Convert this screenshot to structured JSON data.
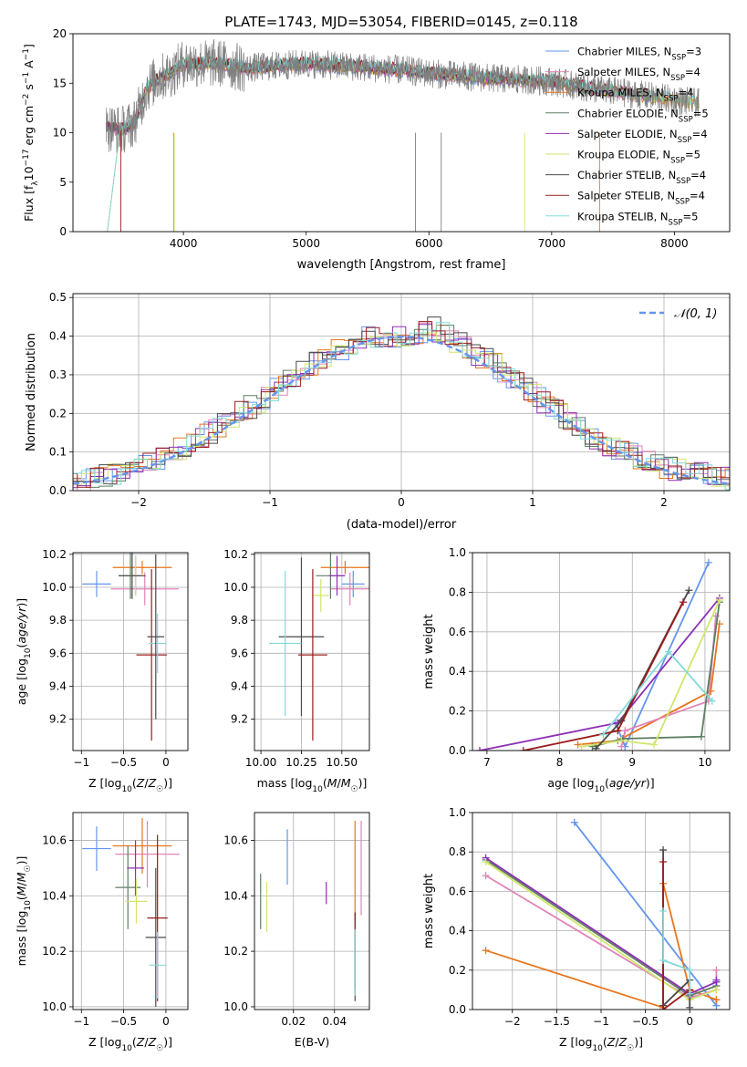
{
  "figure": {
    "title": "PLATE=1743, MJD=53054, FIBERID=0145, z=0.118"
  },
  "colors": {
    "cornflowerblue": "#6495ed",
    "orange": "#e8761e",
    "pink": "#e283b6",
    "darkgreen": "#5e7f63",
    "purple": "#8e2fb5",
    "yellowgreen": "#cfe66a",
    "charcoal": "#4a4a4a",
    "darkred": "#9b1c1c",
    "cyan": "#82d9d9",
    "gray": "#808080"
  },
  "chart_data": [
    {
      "id": "spectrum",
      "type": "line",
      "xlabel": "wavelength [Angstrom, rest frame]",
      "ylabel": "Flux [f_λ10^-17 erg cm^-2 s^-1 A^-1]",
      "xlim": [
        3100,
        8450
      ],
      "ylim": [
        0,
        20
      ],
      "xticks": [
        4000,
        5000,
        6000,
        7000,
        8000
      ],
      "yticks": [
        0,
        5,
        10,
        15,
        20
      ],
      "grid": false,
      "legend_position": "top-right",
      "data_gray_rough": {
        "x": [
          3400,
          3500,
          3600,
          3700,
          3800,
          3900,
          4000,
          4100,
          4300,
          4500,
          4800,
          5000,
          5200,
          5500,
          5800,
          6000,
          6200,
          6500,
          6800,
          7000,
          7300,
          7600,
          7900,
          8200
        ],
        "y": [
          10.5,
          10.3,
          11.0,
          14.5,
          15.5,
          16.0,
          17.0,
          17.0,
          17.0,
          16.5,
          16.8,
          17.0,
          16.8,
          16.6,
          16.3,
          16.0,
          15.8,
          15.5,
          15.3,
          15.2,
          14.5,
          14.0,
          13.5,
          13.0
        ]
      },
      "series": [
        {
          "name": "Chabrier MILES, N_SSP=3",
          "label_main": "Chabrier MILES, N",
          "label_sub": "SSP",
          "label_tail": "=3",
          "color": "cornflowerblue"
        },
        {
          "name": "Salpeter MILES, N_SSP=4",
          "label_main": "Salpeter MILES, N",
          "label_sub": "SSP",
          "label_tail": "=4",
          "color": "pink"
        },
        {
          "name": "Kroupa MILES, N_SSP=4",
          "label_main": "Kroupa MILES, N",
          "label_sub": "SSP",
          "label_tail": "=4",
          "color": "orange"
        },
        {
          "name": "Chabrier ELODIE, N_SSP=5",
          "label_main": "Chabrier ELODIE, N",
          "label_sub": "SSP",
          "label_tail": "=5",
          "color": "darkgreen"
        },
        {
          "name": "Salpeter ELODIE, N_SSP=4",
          "label_main": "Salpeter ELODIE, N",
          "label_sub": "SSP",
          "label_tail": "=4",
          "color": "purple"
        },
        {
          "name": "Kroupa ELODIE, N_SSP=5",
          "label_main": "Kroupa ELODIE, N",
          "label_sub": "SSP",
          "label_tail": "=5",
          "color": "yellowgreen"
        },
        {
          "name": "Chabrier STELIB, N_SSP=4",
          "label_main": "Chabrier STELIB, N",
          "label_sub": "SSP",
          "label_tail": "=4",
          "color": "charcoal"
        },
        {
          "name": "Salpeter STELIB, N_SSP=4",
          "label_main": "Salpeter STELIB, N",
          "label_sub": "SSP",
          "label_tail": "=4",
          "color": "darkred"
        },
        {
          "name": "Kroupa STELIB, N_SSP=5",
          "label_main": "Kroupa STELIB, N",
          "label_sub": "SSP",
          "label_tail": "=5",
          "color": "cyan"
        }
      ]
    },
    {
      "id": "residuals",
      "type": "line",
      "xlabel": "(data-model)/error",
      "ylabel": "Normed distribution",
      "xlim": [
        -2.5,
        2.5
      ],
      "ylim": [
        0,
        0.51
      ],
      "xticks": [
        -2,
        -1,
        0,
        1,
        2
      ],
      "yticks": [
        0.0,
        0.1,
        0.2,
        0.3,
        0.4,
        0.5
      ],
      "grid": true,
      "legend_position": "top-right",
      "gaussian_label": "𝒩(0, 1)",
      "hist_rough": {
        "x": [
          -2.5,
          -2.0,
          -1.5,
          -1.0,
          -0.75,
          -0.5,
          -0.25,
          0,
          0.25,
          0.5,
          0.75,
          1.0,
          1.5,
          2.0,
          2.5
        ],
        "y": [
          0.02,
          0.06,
          0.14,
          0.25,
          0.31,
          0.36,
          0.4,
          0.4,
          0.42,
          0.37,
          0.32,
          0.25,
          0.13,
          0.06,
          0.03
        ]
      }
    },
    {
      "id": "age-vs-Z",
      "type": "scatter",
      "xlabel": "Z [log10(Z/Z☉)]",
      "ylabel": "age [log10(age/yr)]",
      "xlim": [
        -1.1,
        0.26
      ],
      "ylim": [
        9.01,
        10.21
      ],
      "xticks": [
        -1.0,
        -0.5,
        0.0
      ],
      "yticks": [
        9.2,
        9.4,
        9.6,
        9.8,
        10.0,
        10.2
      ],
      "grid": true,
      "points": [
        {
          "color": "cornflowerblue",
          "x": -0.82,
          "xerr": 0.17,
          "y": 10.02,
          "yerr": 0.08
        },
        {
          "color": "orange",
          "x": -0.28,
          "xerr": 0.35,
          "y": 10.12,
          "yerr": 0.04
        },
        {
          "color": "pink",
          "x": -0.25,
          "xerr": 0.4,
          "y": 9.99,
          "yerr": 0.1
        },
        {
          "color": "darkgreen",
          "x": -0.42,
          "xerr": 0.14,
          "y": 10.07,
          "yerr": 0.14
        },
        {
          "color": "purple",
          "x": -0.36,
          "xerr": 0.08,
          "y": 10.07,
          "yerr": 0.12
        },
        {
          "color": "yellowgreen",
          "x": -0.36,
          "xerr": 0.08,
          "y": 10.07,
          "yerr": 0.12
        },
        {
          "color": "charcoal",
          "x": -0.4,
          "xerr": 0.16,
          "y": 10.07,
          "yerr": 0.14
        },
        {
          "color": "darkred",
          "x": -0.17,
          "xerr": 0.18,
          "y": 9.59,
          "yerr": 0.52
        },
        {
          "color": "cyan",
          "x": -0.1,
          "xerr": 0.1,
          "y": 9.66,
          "yerr": 0.18
        },
        {
          "color": "charcoal",
          "x": -0.12,
          "xerr": 0.1,
          "y": 9.7,
          "yerr": 0.5
        }
      ]
    },
    {
      "id": "age-vs-mass",
      "type": "scatter",
      "xlabel": "mass [log10(M/M☉)]",
      "ylabel": "",
      "xlim": [
        9.96,
        10.67
      ],
      "ylim": [
        9.01,
        10.21
      ],
      "xticks": [
        10.0,
        10.25,
        10.5
      ],
      "xtick_labels": [
        "10.00",
        "10.25",
        "10.50"
      ],
      "yticks": [
        9.2,
        9.4,
        9.6,
        9.8,
        10.0,
        10.2
      ],
      "grid": true,
      "points": [
        {
          "color": "cornflowerblue",
          "x": 10.57,
          "xerr": 0.07,
          "y": 10.02,
          "yerr": 0.08
        },
        {
          "color": "orange",
          "x": 10.52,
          "xerr": 0.15,
          "y": 10.12,
          "yerr": 0.04
        },
        {
          "color": "pink",
          "x": 10.55,
          "xerr": 0.12,
          "y": 9.99,
          "yerr": 0.1
        },
        {
          "color": "darkgreen",
          "x": 10.43,
          "xerr": 0.09,
          "y": 10.07,
          "yerr": 0.14
        },
        {
          "color": "purple",
          "x": 10.47,
          "xerr": 0.05,
          "y": 10.07,
          "yerr": 0.12
        },
        {
          "color": "yellowgreen",
          "x": 10.37,
          "xerr": 0.05,
          "y": 9.95,
          "yerr": 0.1
        },
        {
          "color": "charcoal",
          "x": 10.25,
          "xerr": 0.14,
          "y": 9.7,
          "yerr": 0.48
        },
        {
          "color": "darkred",
          "x": 10.32,
          "xerr": 0.09,
          "y": 9.59,
          "yerr": 0.52
        },
        {
          "color": "cyan",
          "x": 10.15,
          "xerr": 0.1,
          "y": 9.66,
          "yerr": 0.44
        }
      ]
    },
    {
      "id": "massweight-vs-age",
      "type": "line",
      "xlabel": "age [log10(age/yr)]",
      "ylabel": "mass weight",
      "xlim": [
        6.8,
        10.34
      ],
      "ylim": [
        0,
        1.0
      ],
      "xticks": [
        7,
        8,
        9,
        10
      ],
      "yticks": [
        0.0,
        0.2,
        0.4,
        0.6,
        0.8,
        1.0
      ],
      "grid": true,
      "series": [
        {
          "color": "cornflowerblue",
          "x": [
            8.77,
            8.9,
            10.05
          ],
          "y": [
            0.14,
            0.02,
            0.95
          ]
        },
        {
          "color": "orange",
          "x": [
            8.25,
            8.8,
            10.08,
            10.2
          ],
          "y": [
            0.03,
            0.05,
            0.3,
            0.64
          ]
        },
        {
          "color": "pink",
          "x": [
            8.85,
            8.9,
            10.05,
            10.15
          ],
          "y": [
            0.02,
            0.1,
            0.25,
            0.68
          ]
        },
        {
          "color": "darkgreen",
          "x": [
            8.45,
            8.87,
            9.95,
            10.2
          ],
          "y": [
            0.02,
            0.06,
            0.07,
            0.75
          ]
        },
        {
          "color": "purple",
          "x": [
            6.9,
            8.8,
            10.2
          ],
          "y": [
            0.0,
            0.14,
            0.77
          ]
        },
        {
          "color": "yellowgreen",
          "x": [
            8.3,
            8.85,
            9.3,
            10.2
          ],
          "y": [
            0.02,
            0.05,
            0.03,
            0.76
          ]
        },
        {
          "color": "charcoal",
          "x": [
            8.5,
            8.85,
            9.78
          ],
          "y": [
            0.01,
            0.15,
            0.81
          ]
        },
        {
          "color": "darkred",
          "x": [
            7.5,
            8.8,
            9.7
          ],
          "y": [
            0.0,
            0.1,
            0.75
          ]
        },
        {
          "color": "cyan",
          "x": [
            8.6,
            9.5,
            10.1
          ],
          "y": [
            0.08,
            0.5,
            0.25
          ]
        }
      ]
    },
    {
      "id": "mass-vs-Z",
      "type": "scatter",
      "xlabel": "Z [log10(Z/Z☉)]",
      "ylabel": "mass [log10(M/M☉)]",
      "xlim": [
        -1.1,
        0.26
      ],
      "ylim": [
        9.99,
        10.7
      ],
      "xticks": [
        -1.0,
        -0.5,
        0.0
      ],
      "yticks": [
        10.0,
        10.2,
        10.4,
        10.6
      ],
      "grid": true,
      "points": [
        {
          "color": "cornflowerblue",
          "x": -0.82,
          "xerr": 0.17,
          "y": 10.57,
          "yerr": 0.08
        },
        {
          "color": "orange",
          "x": -0.28,
          "xerr": 0.35,
          "y": 10.58,
          "yerr": 0.1
        },
        {
          "color": "pink",
          "x": -0.22,
          "xerr": 0.38,
          "y": 10.55,
          "yerr": 0.12
        },
        {
          "color": "darkgreen",
          "x": -0.45,
          "xerr": 0.15,
          "y": 10.43,
          "yerr": 0.15
        },
        {
          "color": "purple",
          "x": -0.36,
          "xerr": 0.1,
          "y": 10.5,
          "yerr": 0.1
        },
        {
          "color": "yellowgreen",
          "x": -0.35,
          "xerr": 0.13,
          "y": 10.38,
          "yerr": 0.08
        },
        {
          "color": "charcoal",
          "x": -0.12,
          "xerr": 0.12,
          "y": 10.25,
          "yerr": 0.25
        },
        {
          "color": "darkred",
          "x": -0.1,
          "xerr": 0.12,
          "y": 10.32,
          "yerr": 0.3
        },
        {
          "color": "cyan",
          "x": -0.1,
          "xerr": 0.1,
          "y": 10.15,
          "yerr": 0.12
        }
      ]
    },
    {
      "id": "mass-vs-EBV",
      "type": "scatter",
      "xlabel": "E(B-V)",
      "ylabel": "",
      "xlim": [
        0.001,
        0.057
      ],
      "ylim": [
        9.99,
        10.7
      ],
      "xticks": [
        0.02,
        0.04
      ],
      "xtick_labels": [
        "0.02",
        "0.04"
      ],
      "yticks": [
        10.0,
        10.2,
        10.4,
        10.6
      ],
      "grid": true,
      "points": [
        {
          "color": "cornflowerblue",
          "x": 0.017,
          "y": 10.54,
          "yerr": 0.1
        },
        {
          "color": "orange",
          "x": 0.05,
          "y": 10.5,
          "yerr": 0.17
        },
        {
          "color": "pink",
          "x": 0.053,
          "y": 10.5,
          "yerr": 0.17
        },
        {
          "color": "darkgreen",
          "x": 0.004,
          "y": 10.38,
          "yerr": 0.1
        },
        {
          "color": "purple",
          "x": 0.036,
          "y": 10.41,
          "yerr": 0.04
        },
        {
          "color": "yellowgreen",
          "x": 0.007,
          "y": 10.36,
          "yerr": 0.09
        },
        {
          "color": "charcoal",
          "x": 0.05,
          "y": 10.18,
          "yerr": 0.16
        },
        {
          "color": "darkred",
          "x": 0.05,
          "y": 10.2,
          "yerr": 0.14
        },
        {
          "color": "cyan",
          "x": 0.05,
          "y": 10.16,
          "yerr": 0.12
        }
      ]
    },
    {
      "id": "massweight-vs-Z",
      "type": "line",
      "xlabel": "Z [log10(Z/Z☉)]",
      "ylabel": "mass weight",
      "xlim": [
        -2.45,
        0.45
      ],
      "ylim": [
        0,
        1.0
      ],
      "xticks": [
        -2.0,
        -1.5,
        -1.0,
        -0.5,
        0.0
      ],
      "yticks": [
        0.0,
        0.2,
        0.4,
        0.6,
        0.8,
        1.0
      ],
      "grid": true,
      "series": [
        {
          "color": "cornflowerblue",
          "x": [
            -1.3,
            0.3,
            0.3
          ],
          "y": [
            0.95,
            0.02,
            0.05
          ]
        },
        {
          "color": "orange",
          "x": [
            -2.3,
            -0.3,
            -0.3,
            0.0,
            0.3
          ],
          "y": [
            0.3,
            0.01,
            0.64,
            0.1,
            0.05
          ]
        },
        {
          "color": "pink",
          "x": [
            -2.3,
            0.0,
            0.3,
            0.3
          ],
          "y": [
            0.68,
            0.06,
            0.1,
            0.2
          ]
        },
        {
          "color": "darkgreen",
          "x": [
            -2.3,
            0.0,
            0.3,
            0.3
          ],
          "y": [
            0.76,
            0.07,
            0.12,
            0.14
          ]
        },
        {
          "color": "purple",
          "x": [
            -2.3,
            0.0,
            0.3,
            0.3
          ],
          "y": [
            0.77,
            0.08,
            0.14,
            0.15
          ]
        },
        {
          "color": "yellowgreen",
          "x": [
            -2.3,
            0.0,
            0.3
          ],
          "y": [
            0.75,
            0.05,
            0.1
          ]
        },
        {
          "color": "charcoal",
          "x": [
            -0.3,
            -0.3,
            0.0,
            0.0
          ],
          "y": [
            0.81,
            0.02,
            0.15,
            0.01
          ]
        },
        {
          "color": "darkred",
          "x": [
            -0.3,
            -0.3,
            0.0
          ],
          "y": [
            0.75,
            0.0,
            0.1
          ]
        },
        {
          "color": "cyan",
          "x": [
            -0.3,
            -0.3,
            0.0,
            0.0
          ],
          "y": [
            0.5,
            0.25,
            0.2,
            0.08
          ]
        }
      ]
    }
  ]
}
